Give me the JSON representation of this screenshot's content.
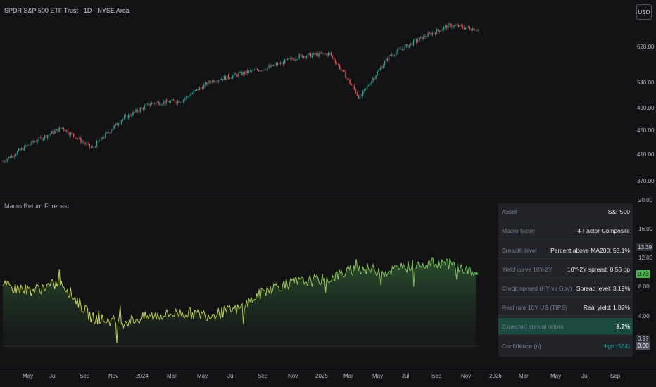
{
  "header": {
    "title": "SPDR S&P 500 ETF Trust · 1D · NYSE Arca",
    "currency": "USD"
  },
  "indicator": {
    "title": "Macro Return Forecast"
  },
  "price_axis": {
    "labels": [
      "620.00",
      "540.00",
      "490.00",
      "450.00",
      "410.00",
      "370.00"
    ]
  },
  "forecast_axis": {
    "labels": [
      "20.00",
      "16.00",
      "12.00",
      "8.00",
      "4.00"
    ],
    "badges": [
      {
        "text": "13.39",
        "bg": "#2a2e39",
        "fg": "#d1d4dc"
      },
      {
        "text": "9.73",
        "bg": "#4caf50",
        "fg": "#131316"
      },
      {
        "text": "0.97",
        "bg": "#2a2e39",
        "fg": "#d1d4dc"
      },
      {
        "text": "0.00",
        "bg": "#50535e",
        "fg": "#ffffff"
      }
    ]
  },
  "time_axis": {
    "labels": [
      "May",
      "Jul",
      "Sep",
      "Nov",
      "2024",
      "Mar",
      "May",
      "Jul",
      "Sep",
      "Nov",
      "2025",
      "Mar",
      "May",
      "Jul",
      "Sep",
      "Nov",
      "2026",
      "Mar",
      "May",
      "Jul",
      "Sep"
    ]
  },
  "table": {
    "rows": [
      {
        "label": "Asset",
        "value": "S&P500"
      },
      {
        "label": "Macro factor",
        "value": "4-Factor Composite"
      },
      {
        "label": "Breadth level",
        "value": "Percent above MA200: 53.1%"
      },
      {
        "label": "Yield curve 10Y-2Y",
        "value": "10Y-2Y spread: 0.56 pp"
      },
      {
        "label": "Credit spread (HY vs Gov)",
        "value": "Spread level: 3.19%"
      },
      {
        "label": "Real rate 10Y US (TIPS)",
        "value": "Real yield: 1.82%"
      },
      {
        "label": "Expected annual return",
        "value": "9.7%"
      },
      {
        "label": "Confidence (n)",
        "value": "High (584)"
      }
    ]
  },
  "colors": {
    "up": "#26a69a",
    "down": "#ef5350",
    "forecast_line": "#8bc34a",
    "forecast_line_low": "#c6d84a",
    "highlight_row": "#1b4a41"
  },
  "chart_data": [
    {
      "type": "candlestick",
      "title": "SPDR S&P 500 ETF Trust · 1D · NYSE Arca",
      "x": [
        "2023-04",
        "2023-06",
        "2023-08",
        "2023-10",
        "2023-12",
        "2024-02",
        "2024-04",
        "2024-06",
        "2024-08",
        "2024-10",
        "2024-12",
        "2025-02",
        "2025-04",
        "2025-06",
        "2025-08",
        "2025-10",
        "2025-11"
      ],
      "close": [
        400,
        430,
        455,
        420,
        470,
        500,
        505,
        545,
        560,
        575,
        600,
        605,
        510,
        600,
        640,
        675,
        665
      ],
      "ylim": [
        360,
        690
      ],
      "y_scale": "log"
    },
    {
      "type": "area",
      "title": "Macro Return Forecast",
      "x": [
        "2023-04",
        "2023-06",
        "2023-08",
        "2023-10",
        "2023-12",
        "2024-02",
        "2024-04",
        "2024-06",
        "2024-08",
        "2024-10",
        "2024-12",
        "2025-02",
        "2025-04",
        "2025-06",
        "2025-08",
        "2025-10",
        "2025-11"
      ],
      "values": [
        8.0,
        7.5,
        8.5,
        3.8,
        3.2,
        4.0,
        4.5,
        4.2,
        5.0,
        7.8,
        8.6,
        9.0,
        10.5,
        10.0,
        11.0,
        11.2,
        9.73
      ],
      "ylim": [
        0,
        20
      ]
    }
  ]
}
